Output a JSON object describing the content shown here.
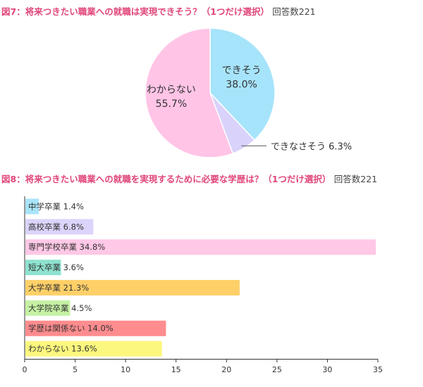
{
  "figures": [
    {
      "number_label": "図7：",
      "title": "将来つきたい職業への就職は実現できそう？（1つだけ選択）",
      "response_count": "回答数221"
    },
    {
      "number_label": "図8：",
      "title": "将来つきたい職業への就職を実現するために必要な学歴は？（1つだけ選択）",
      "response_count": "回答数221"
    }
  ],
  "chart_data": [
    {
      "type": "pie",
      "title": "図7：将来つきたい職業への就職は実現できそう？（1つだけ選択）",
      "subtitle": "回答数221",
      "slices": [
        {
          "label": "できそう",
          "value": 38.0,
          "display": "38.0%",
          "color": "#a6e4fb"
        },
        {
          "label": "できなさそう",
          "value": 6.3,
          "display": "6.3%",
          "color": "#d9d2fb"
        },
        {
          "label": "わからない",
          "value": 55.7,
          "display": "55.7%",
          "color": "#ffc4e6"
        }
      ]
    },
    {
      "type": "bar",
      "orientation": "horizontal",
      "title": "図8：将来つきたい職業への就職を実現するために必要な学歴は？（1つだけ選択）",
      "subtitle": "回答数221",
      "categories": [
        "中学卒業",
        "高校卒業",
        "専門学校卒業",
        "短大卒業",
        "大学卒業",
        "大学院卒業",
        "学歴は関係ない",
        "わからない"
      ],
      "values": [
        1.4,
        6.8,
        34.8,
        3.6,
        21.3,
        4.5,
        14.0,
        13.6
      ],
      "value_labels": [
        "1.4%",
        "6.8%",
        "34.8%",
        "3.6%",
        "21.3%",
        "4.5%",
        "14.0%",
        "13.6%"
      ],
      "colors": [
        "#a8e4fa",
        "#dcd4fb",
        "#ffc8e6",
        "#8ee2cf",
        "#ffd068",
        "#c6f2a4",
        "#ff8c8e",
        "#fcf77e"
      ],
      "xlim": [
        0,
        35
      ],
      "xticks": [
        0,
        5,
        10,
        15,
        20,
        25,
        30,
        35
      ],
      "grid": false,
      "legend": "none"
    }
  ]
}
